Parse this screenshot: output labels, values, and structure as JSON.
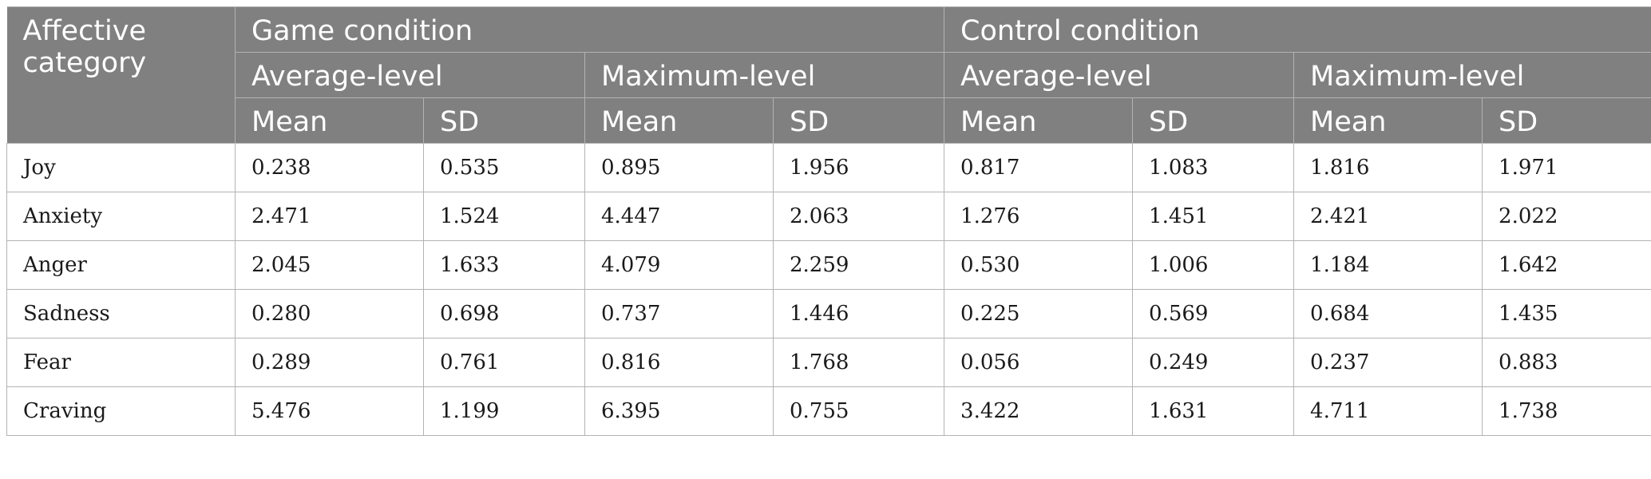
{
  "header": {
    "category_label": "Affective category",
    "conditions": [
      {
        "label": "Game condition",
        "levels": [
          {
            "label": "Average-level",
            "stats": [
              "Mean",
              "SD"
            ]
          },
          {
            "label": "Maximum-level",
            "stats": [
              "Mean",
              "SD"
            ]
          }
        ]
      },
      {
        "label": "Control condition",
        "levels": [
          {
            "label": "Average-level",
            "stats": [
              "Mean",
              "SD"
            ]
          },
          {
            "label": "Maximum-level",
            "stats": [
              "Mean",
              "SD"
            ]
          }
        ]
      }
    ]
  },
  "rows": [
    {
      "category": "Joy",
      "values": [
        "0.238",
        "0.535",
        "0.895",
        "1.956",
        "0.817",
        "1.083",
        "1.816",
        "1.971"
      ]
    },
    {
      "category": "Anxiety",
      "values": [
        "2.471",
        "1.524",
        "4.447",
        "2.063",
        "1.276",
        "1.451",
        "2.421",
        "2.022"
      ]
    },
    {
      "category": "Anger",
      "values": [
        "2.045",
        "1.633",
        "4.079",
        "2.259",
        "0.530",
        "1.006",
        "1.184",
        "1.642"
      ]
    },
    {
      "category": "Sadness",
      "values": [
        "0.280",
        "0.698",
        "0.737",
        "1.446",
        "0.225",
        "0.569",
        "0.684",
        "1.435"
      ]
    },
    {
      "category": "Fear",
      "values": [
        "0.289",
        "0.761",
        "0.816",
        "1.768",
        "0.056",
        "0.249",
        "0.237",
        "0.883"
      ]
    },
    {
      "category": "Craving",
      "values": [
        "5.476",
        "1.199",
        "6.395",
        "0.755",
        "3.422",
        "1.631",
        "4.711",
        "1.738"
      ]
    }
  ],
  "colors": {
    "header_bg": "#808080",
    "header_text": "#ffffff",
    "grid": "#b3b3b3",
    "body_text": "#1a1a1a"
  }
}
